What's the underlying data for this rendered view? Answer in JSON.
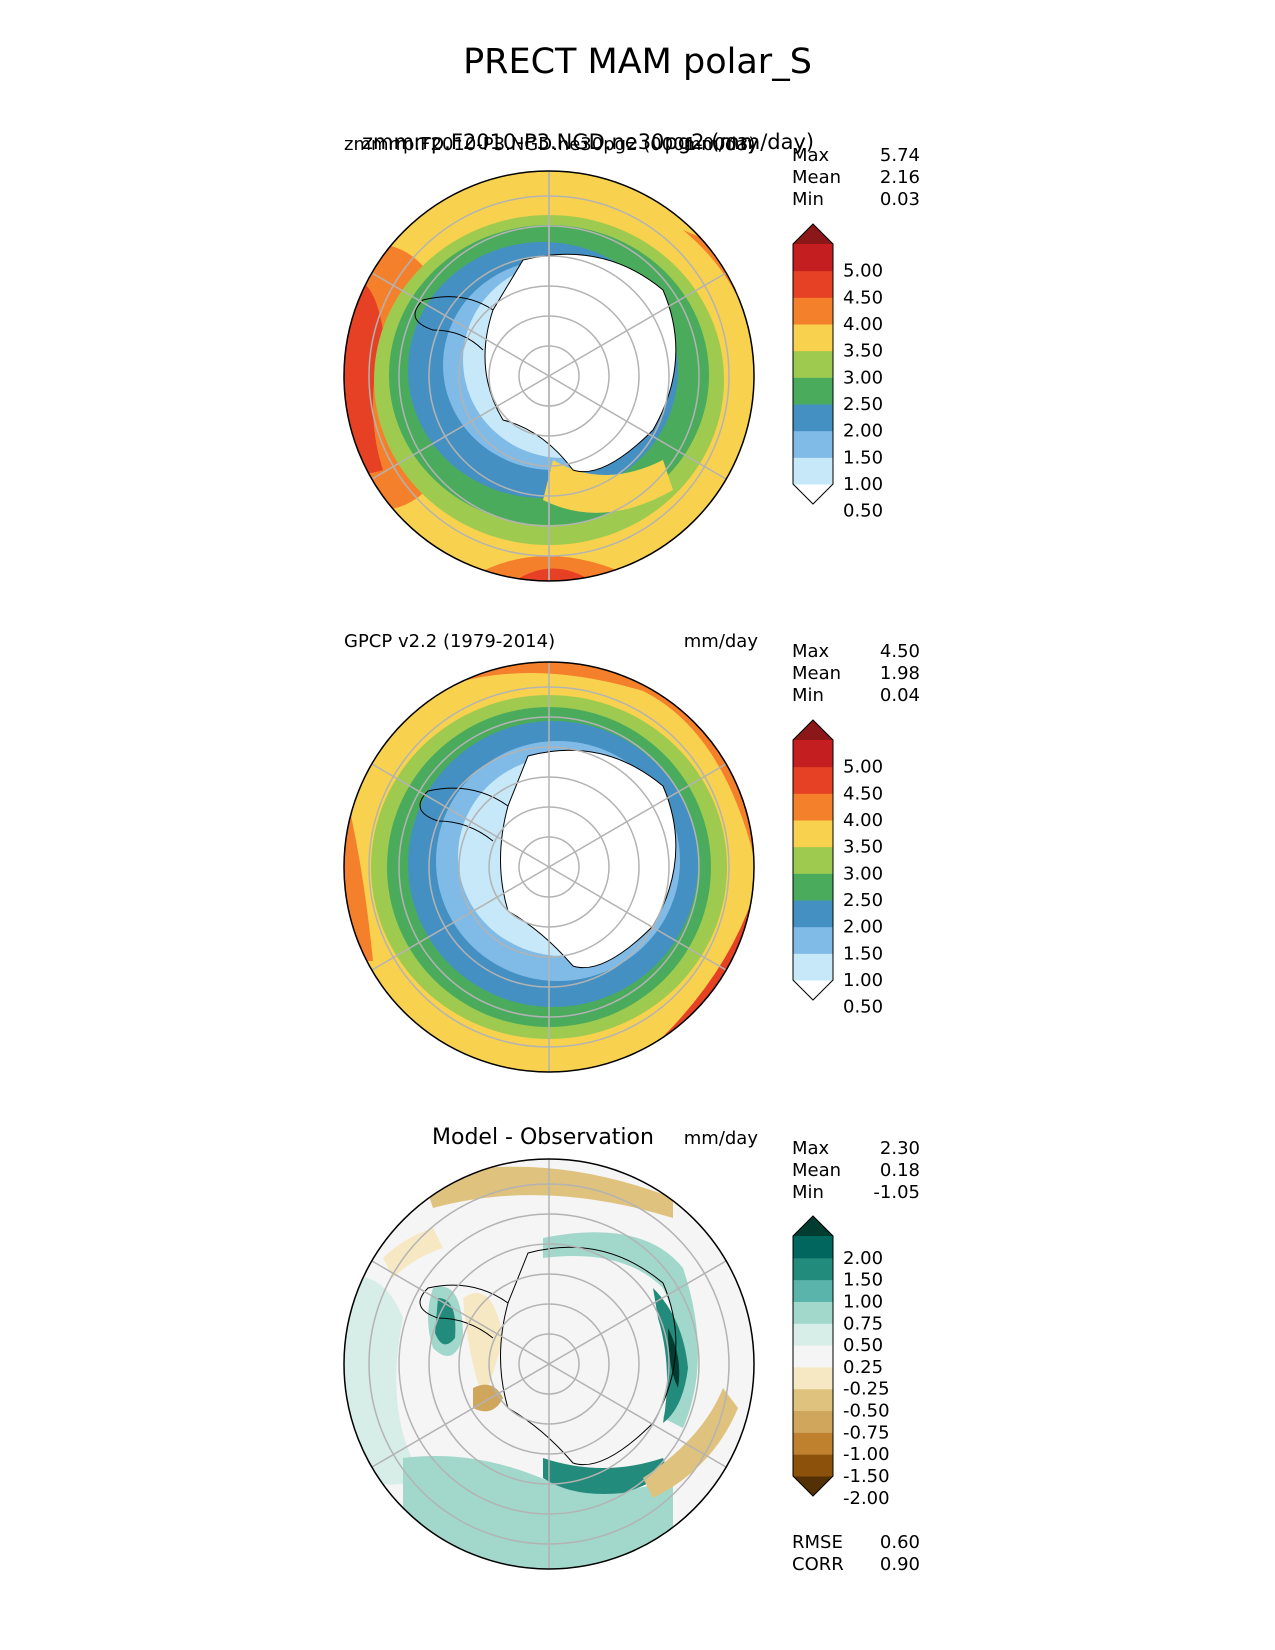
{
  "figure_title": "PRECT MAM polar_S",
  "colors": {
    "precip_levels": [
      "#ffffff",
      "#c6e8f8",
      "#7fbbe6",
      "#4590c3",
      "#4bab5c",
      "#9ecb4f",
      "#f8d24e",
      "#f5802c",
      "#e64125",
      "#c41e21",
      "#8c1718"
    ],
    "diff_levels": [
      "#543005",
      "#8c510a",
      "#bf812d",
      "#cfa65c",
      "#dfc27d",
      "#f6e8c3",
      "#f5f5f5",
      "#d7ede8",
      "#a1d8cb",
      "#5ab4ac",
      "#238b7b",
      "#01665e",
      "#003c30"
    ]
  },
  "panels": [
    {
      "left_title": "zmmrrp.F2010-P3.NGD.ne30pg2 (0001-0003)",
      "left_title_overlap": "zmmrrp.F2010-P3.NGD.ne30pg2 (mm/day)",
      "right_title": "mm/day",
      "stats": [
        {
          "label": "Max",
          "value": "5.74"
        },
        {
          "label": "Mean",
          "value": "2.16"
        },
        {
          "label": "Min",
          "value": "0.03"
        }
      ],
      "colorbar_labels": [
        "5.00",
        "4.50",
        "4.00",
        "3.50",
        "3.00",
        "2.50",
        "2.00",
        "1.50",
        "1.00",
        "0.50"
      ]
    },
    {
      "left_title": "GPCP v2.2 (1979-2014)",
      "right_title": "mm/day",
      "stats": [
        {
          "label": "Max",
          "value": "4.50"
        },
        {
          "label": "Mean",
          "value": "1.98"
        },
        {
          "label": "Min",
          "value": "0.04"
        }
      ],
      "colorbar_labels": [
        "5.00",
        "4.50",
        "4.00",
        "3.50",
        "3.00",
        "2.50",
        "2.00",
        "1.50",
        "1.00",
        "0.50"
      ]
    },
    {
      "title": "Model - Observation",
      "right_title": "mm/day",
      "stats": [
        {
          "label": "Max",
          "value": "2.30"
        },
        {
          "label": "Mean",
          "value": "0.18"
        },
        {
          "label": "Min",
          "value": "-1.05"
        }
      ],
      "colorbar_labels": [
        "2.00",
        "1.50",
        "1.00",
        "0.75",
        "0.50",
        "0.25",
        "-0.25",
        "-0.50",
        "-0.75",
        "-1.00",
        "-1.50",
        "-2.00"
      ],
      "metrics": [
        {
          "label": "RMSE",
          "value": "0.60"
        },
        {
          "label": "CORR",
          "value": "0.90"
        }
      ]
    }
  ]
}
